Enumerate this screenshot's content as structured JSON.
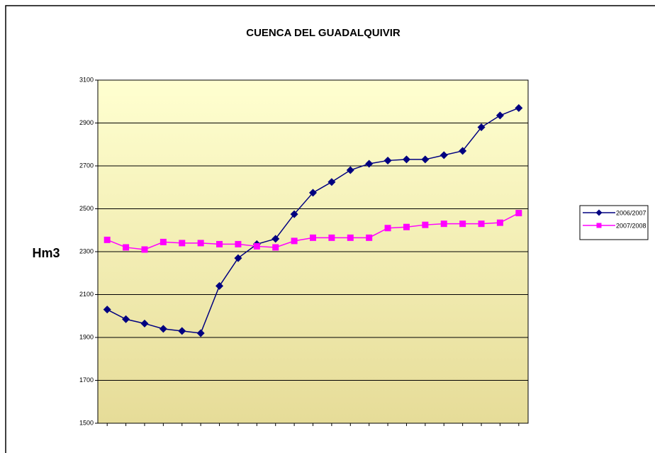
{
  "chart_data": {
    "type": "line",
    "title": "CUENCA DEL GUADALQUIVIR",
    "y_label": "Hm3",
    "categories": [
      null,
      null,
      null,
      null,
      null,
      null,
      null,
      null,
      null,
      null,
      null,
      null,
      null,
      null,
      null,
      null,
      null,
      null,
      null,
      null,
      null,
      null,
      null
    ],
    "series": [
      {
        "name": "2006/2007",
        "color": "#000080",
        "marker": "diamond",
        "values": [
          2030,
          1985,
          1965,
          1940,
          1930,
          1920,
          2140,
          2270,
          2335,
          2360,
          2475,
          2575,
          2625,
          2680,
          2710,
          2725,
          2730,
          2730,
          2750,
          2770,
          2880,
          2935,
          2970
        ]
      },
      {
        "name": "2007/2008",
        "color": "#ff00ff",
        "marker": "square",
        "values": [
          2355,
          2320,
          2310,
          2345,
          2340,
          2340,
          2335,
          2335,
          2325,
          2320,
          2350,
          2365,
          2365,
          2365,
          2365,
          2410,
          2415,
          2425,
          2430,
          2430,
          2430,
          2435,
          2480
        ]
      }
    ],
    "ylim": [
      1500,
      3100
    ],
    "yticks": [
      1500,
      1700,
      1900,
      2100,
      2300,
      2500,
      2700,
      2900,
      3100
    ],
    "grid": true,
    "legend": "right"
  }
}
